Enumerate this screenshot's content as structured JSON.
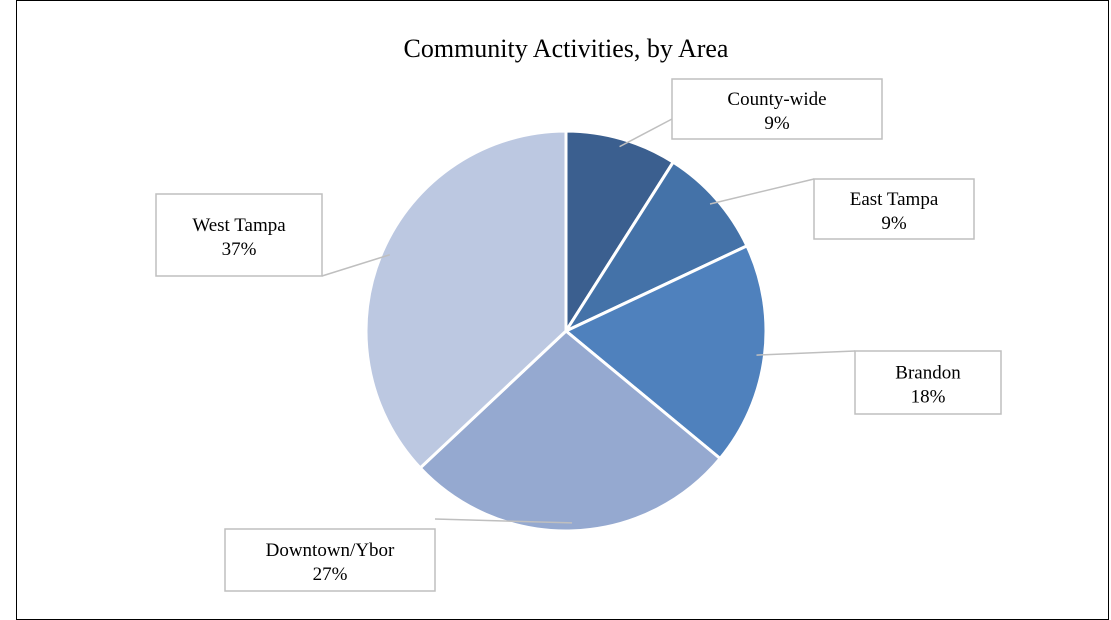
{
  "chart_data": {
    "type": "pie",
    "title": "Community Activities, by Area",
    "slices": [
      {
        "label": "County-wide",
        "value": 9,
        "display": "9%",
        "color": "#3b5f8f"
      },
      {
        "label": "East Tampa",
        "value": 9,
        "display": "9%",
        "color": "#4472a8"
      },
      {
        "label": "Brandon",
        "value": 18,
        "display": "18%",
        "color": "#4f81bd"
      },
      {
        "label": "Downtown/Ybor",
        "value": 27,
        "display": "27%",
        "color": "#95a9d0"
      },
      {
        "label": "West Tampa",
        "value": 37,
        "display": "37%",
        "color": "#bcc8e1"
      }
    ],
    "start_angle_deg": 0,
    "direction": "clockwise",
    "legend": "none",
    "data_labels": "callout"
  }
}
